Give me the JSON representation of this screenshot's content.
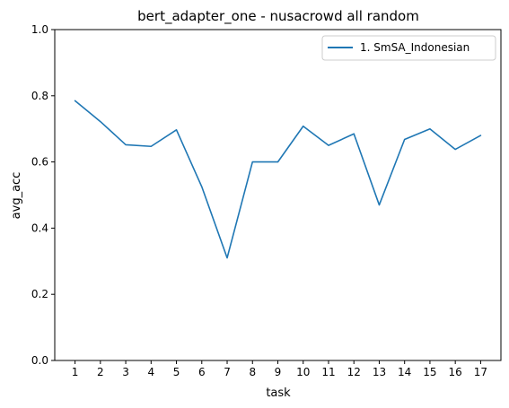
{
  "chart_data": {
    "type": "line",
    "title": "bert_adapter_one - nusacrowd all random",
    "xlabel": "task",
    "ylabel": "avg_acc",
    "x": [
      1,
      2,
      3,
      4,
      5,
      6,
      7,
      8,
      9,
      10,
      11,
      12,
      13,
      14,
      15,
      16,
      17
    ],
    "x_tick_labels": [
      "1",
      "2",
      "3",
      "4",
      "5",
      "6",
      "7",
      "8",
      "9",
      "10",
      "11",
      "12",
      "13",
      "14",
      "15",
      "16",
      "17"
    ],
    "ylim": [
      0.0,
      1.0
    ],
    "y_ticks": [
      0.0,
      0.2,
      0.4,
      0.6,
      0.8,
      1.0
    ],
    "y_tick_labels": [
      "0.0",
      "0.2",
      "0.4",
      "0.6",
      "0.8",
      "1.0"
    ],
    "grid": false,
    "legend_position": "top-right",
    "series": [
      {
        "name": "1. SmSA_Indonesian",
        "color": "#1f77b4",
        "values": [
          0.785,
          0.722,
          0.652,
          0.647,
          0.697,
          0.525,
          0.31,
          0.6,
          0.6,
          0.708,
          0.65,
          0.685,
          0.47,
          0.668,
          0.7,
          0.638,
          0.68
        ]
      }
    ]
  }
}
